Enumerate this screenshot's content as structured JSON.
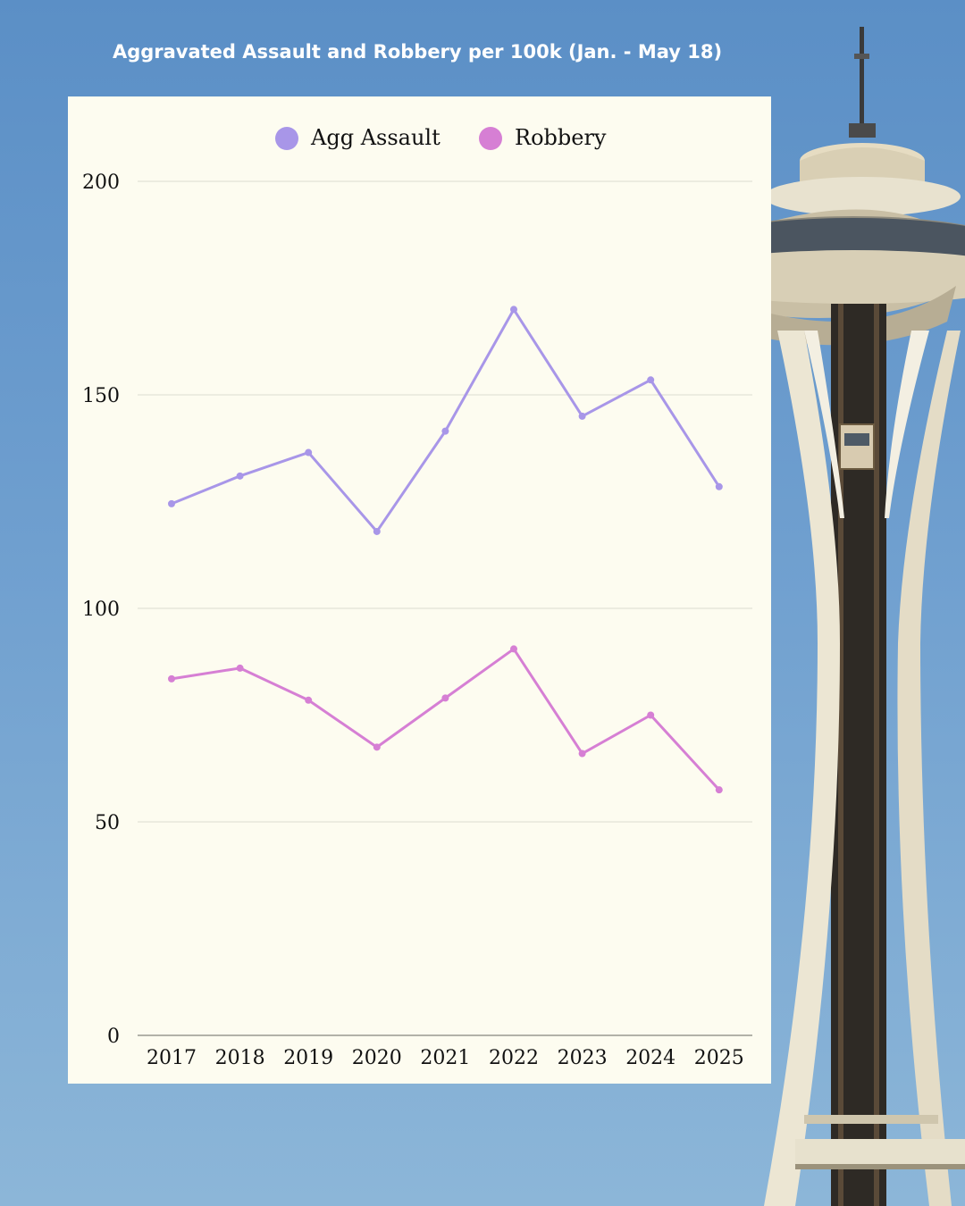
{
  "title": "Aggravated Assault and Robbery per 100k (Jan. - May 18)",
  "colors": {
    "agg_assault": "#a896e8",
    "robbery": "#d67fd4",
    "card": "#fdfcf0",
    "grid": "#dcdccf"
  },
  "chart_data": {
    "type": "line",
    "title": "Aggravated Assault and Robbery per 100k (Jan. - May 18)",
    "xlabel": "",
    "ylabel": "",
    "categories": [
      "2017",
      "2018",
      "2019",
      "2020",
      "2021",
      "2022",
      "2023",
      "2024",
      "2025"
    ],
    "series": [
      {
        "name": "Agg Assault",
        "color": "#a896e8",
        "values": [
          124.5,
          131,
          136.5,
          118,
          141.5,
          170,
          145,
          153.5,
          128.5
        ]
      },
      {
        "name": "Robbery",
        "color": "#d67fd4",
        "values": [
          83.5,
          86,
          78.5,
          67.5,
          79,
          90.5,
          66,
          75,
          57.5
        ]
      }
    ],
    "ylim": [
      0,
      200
    ],
    "yticks": [
      0,
      50,
      100,
      150,
      200
    ],
    "grid": true,
    "legend_position": "top-center"
  }
}
